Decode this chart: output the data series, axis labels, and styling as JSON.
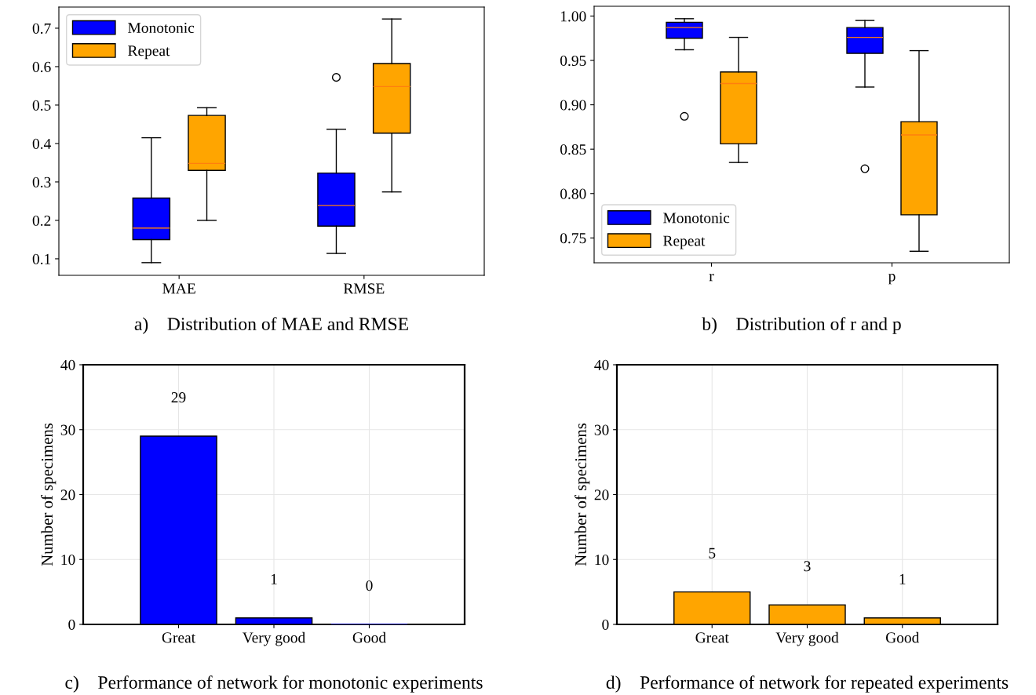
{
  "chart_data": [
    {
      "type": "box",
      "title": "a)    Distribution of MAE and RMSE",
      "categories": [
        "MAE",
        "RMSE"
      ],
      "ylim": [
        0.057,
        0.755
      ],
      "yticks": [
        0.1,
        0.2,
        0.3,
        0.4,
        0.5,
        0.6,
        0.7
      ],
      "legend": "top left",
      "grid": false,
      "series": [
        {
          "name": "Monotonic",
          "color": "#0000ff",
          "boxes": [
            {
              "low": 0.09,
              "q1": 0.15,
              "median": 0.18,
              "q3": 0.258,
              "high": 0.415
            },
            {
              "low": 0.114,
              "q1": 0.185,
              "median": 0.239,
              "q3": 0.323,
              "high": 0.437,
              "outliers": [
                0.572
              ]
            }
          ]
        },
        {
          "name": "Repeat",
          "color": "#ffa500",
          "boxes": [
            {
              "low": 0.2,
              "q1": 0.33,
              "median": 0.348,
              "q3": 0.473,
              "high": 0.493
            },
            {
              "low": 0.274,
              "q1": 0.427,
              "median": 0.548,
              "q3": 0.608,
              "high": 0.724
            }
          ]
        }
      ]
    },
    {
      "type": "box",
      "title": "b)    Distribution of r and p",
      "categories": [
        "r",
        "p"
      ],
      "ylim": [
        0.722,
        1.011
      ],
      "yticks": [
        {
          "value": 0.75,
          "label": "0.75"
        },
        {
          "value": 0.8,
          "label": "0.80"
        },
        {
          "value": 0.85,
          "label": "0.85"
        },
        {
          "value": 0.9,
          "label": "0.90"
        },
        {
          "value": 0.95,
          "label": "0.95"
        },
        {
          "value": 1.0,
          "label": "1.00"
        }
      ],
      "legend": "bottom left",
      "grid": false,
      "series": [
        {
          "name": "Monotonic",
          "color": "#0000ff",
          "boxes": [
            {
              "low": 0.962,
              "q1": 0.975,
              "median": 0.987,
              "q3": 0.993,
              "high": 0.997,
              "outliers": [
                0.887
              ]
            },
            {
              "low": 0.92,
              "q1": 0.958,
              "median": 0.976,
              "q3": 0.987,
              "high": 0.995,
              "outliers": [
                0.828
              ]
            }
          ]
        },
        {
          "name": "Repeat",
          "color": "#ffa500",
          "boxes": [
            {
              "low": 0.835,
              "q1": 0.856,
              "median": 0.924,
              "q3": 0.937,
              "high": 0.976
            },
            {
              "low": 0.735,
              "q1": 0.776,
              "median": 0.866,
              "q3": 0.881,
              "high": 0.961
            }
          ]
        }
      ]
    },
    {
      "type": "bar",
      "title": "c)    Performance of network for monotonic experiments",
      "ylabel": "Number of specimens",
      "categories": [
        "Great",
        "Very good",
        "Good"
      ],
      "values": [
        29,
        1,
        0
      ],
      "color": "#0000ff",
      "data_labels": true,
      "ylim": [
        0,
        40
      ],
      "yticks": [
        0,
        10,
        20,
        30,
        40
      ],
      "grid": true
    },
    {
      "type": "bar",
      "title": "d)    Performance of network for repeated experiments",
      "ylabel": "Number of specimens",
      "categories": [
        "Great",
        "Very good",
        "Good"
      ],
      "values": [
        5,
        3,
        1
      ],
      "color": "#ffa500",
      "data_labels": true,
      "ylim": [
        0,
        40
      ],
      "yticks": [
        0,
        10,
        20,
        30,
        40
      ],
      "grid": true
    }
  ]
}
